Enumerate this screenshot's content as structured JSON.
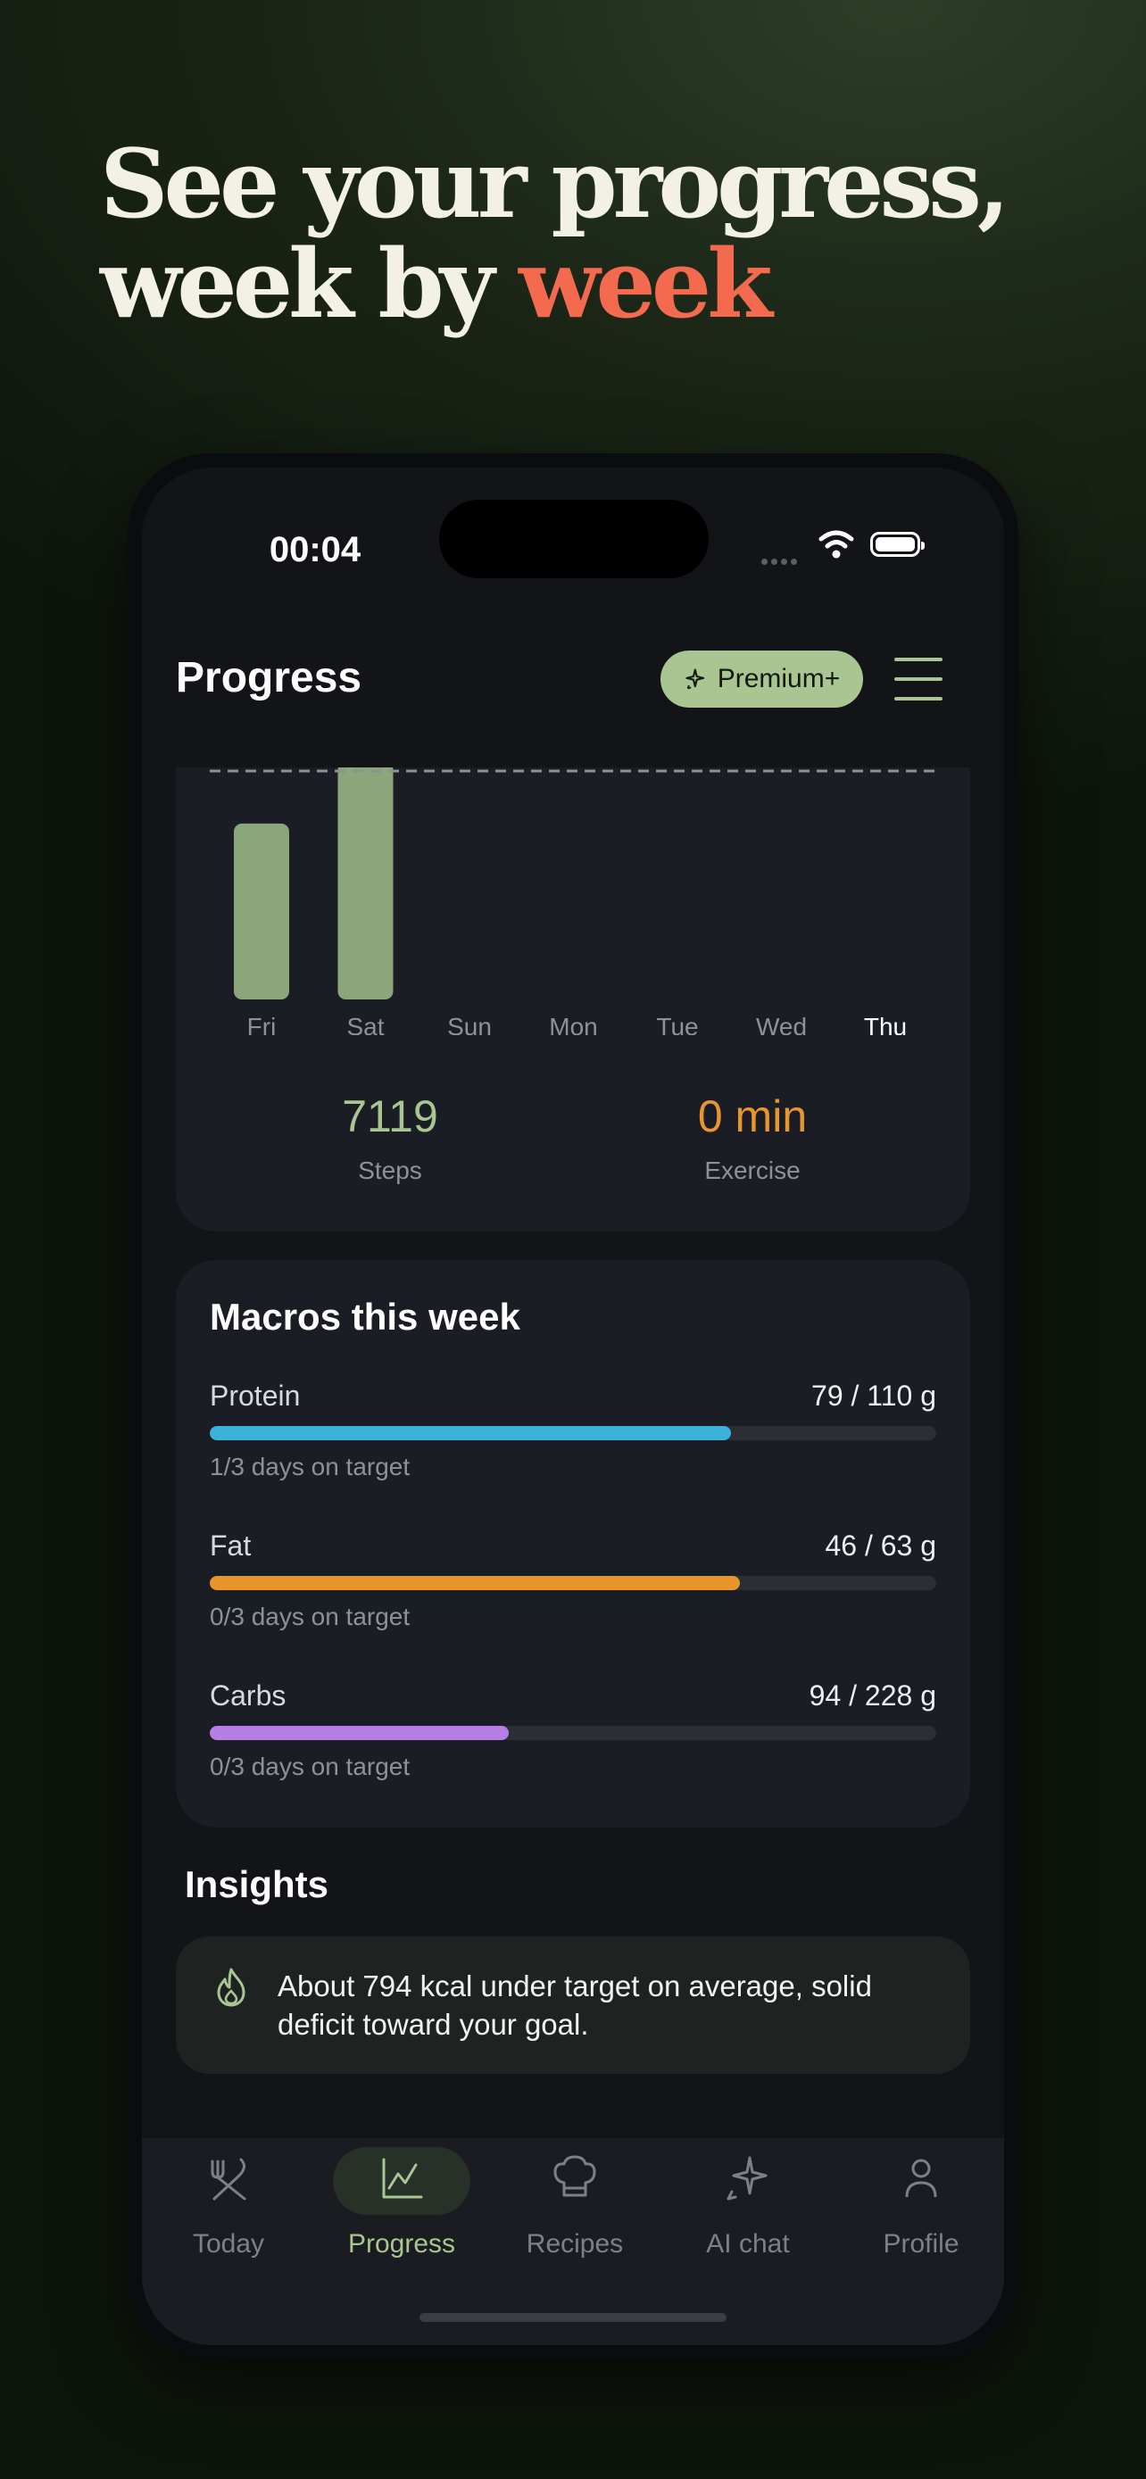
{
  "headline": {
    "line1": "See your progress,",
    "line2_prefix": "week by ",
    "line2_accent": "week"
  },
  "status_bar": {
    "time": "00:04"
  },
  "header": {
    "title": "Progress",
    "premium_label": "Premium+"
  },
  "chart_data": {
    "type": "bar",
    "categories": [
      "Fri",
      "Sat",
      "Sun",
      "Mon",
      "Tue",
      "Wed",
      "Thu"
    ],
    "values": [
      0.77,
      1.04,
      0,
      0,
      0,
      0,
      0
    ],
    "target_line": 1.0,
    "highlighted_category": "Thu",
    "colors": {
      "bar": "#8aa67a",
      "label": "#8e9196",
      "label_active": "#ffffff",
      "target": "#8e9196"
    }
  },
  "activity": {
    "steps_value": "7119",
    "steps_label": "Steps",
    "exercise_value": "0 min",
    "exercise_label": "Exercise"
  },
  "macros": {
    "title": "Macros this week",
    "items": [
      {
        "name": "Protein",
        "value": "79 / 110 g",
        "note": "1/3 days on target",
        "progress": 0.718,
        "color": "#3cb1dc"
      },
      {
        "name": "Fat",
        "value": "46 / 63 g",
        "note": "0/3 days on target",
        "progress": 0.73,
        "color": "#e8952e"
      },
      {
        "name": "Carbs",
        "value": "94 / 228 g",
        "note": "0/3 days on target",
        "progress": 0.412,
        "color": "#b67ee6"
      }
    ]
  },
  "insights": {
    "title": "Insights",
    "items": [
      {
        "icon": "flame-icon",
        "text": "About 794 kcal under target on average, solid deficit toward your goal."
      }
    ]
  },
  "tabbar": {
    "active": "Progress",
    "items": [
      {
        "label": "Today",
        "icon": "fork-knife-icon"
      },
      {
        "label": "Progress",
        "icon": "chart-icon"
      },
      {
        "label": "Recipes",
        "icon": "chef-hat-icon"
      },
      {
        "label": "AI chat",
        "icon": "sparkle-icon"
      },
      {
        "label": "Profile",
        "icon": "person-icon"
      }
    ]
  },
  "colors": {
    "accent": "#a8c592",
    "headline_accent": "#f36a4f",
    "background": "#121418",
    "card": "#1b1d24"
  }
}
